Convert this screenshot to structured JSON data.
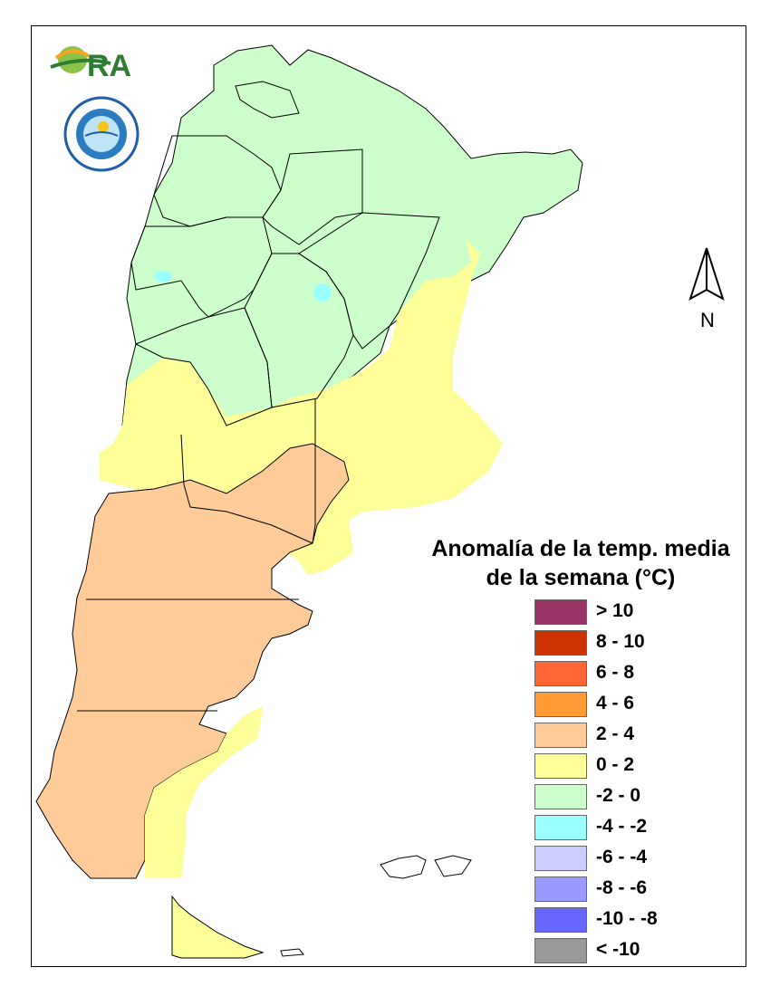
{
  "legend": {
    "title_line1": "Anomalía de la temp. media",
    "title_line2": "de la semana (°C)",
    "items": [
      {
        "label": "> 10",
        "color": "#993366"
      },
      {
        "label": "8 - 10",
        "color": "#cc3300"
      },
      {
        "label": "6 - 8",
        "color": "#ff6633"
      },
      {
        "label": "4 - 6",
        "color": "#ff9933"
      },
      {
        "label": "2 - 4",
        "color": "#ffcc99"
      },
      {
        "label": "0 - 2",
        "color": "#ffff99"
      },
      {
        "label": "-2 - 0",
        "color": "#ccffcc"
      },
      {
        "label": "-4 - -2",
        "color": "#99ffff"
      },
      {
        "label": "-6 - -4",
        "color": "#ccccff"
      },
      {
        "label": "-8 - -6",
        "color": "#9999ff"
      },
      {
        "label": "-10 - -8",
        "color": "#6666ff"
      },
      {
        "label": "< -10",
        "color": "#999999"
      }
    ]
  },
  "north_arrow": {
    "label": "N"
  },
  "logos": {
    "ora_text": "ORA"
  }
}
